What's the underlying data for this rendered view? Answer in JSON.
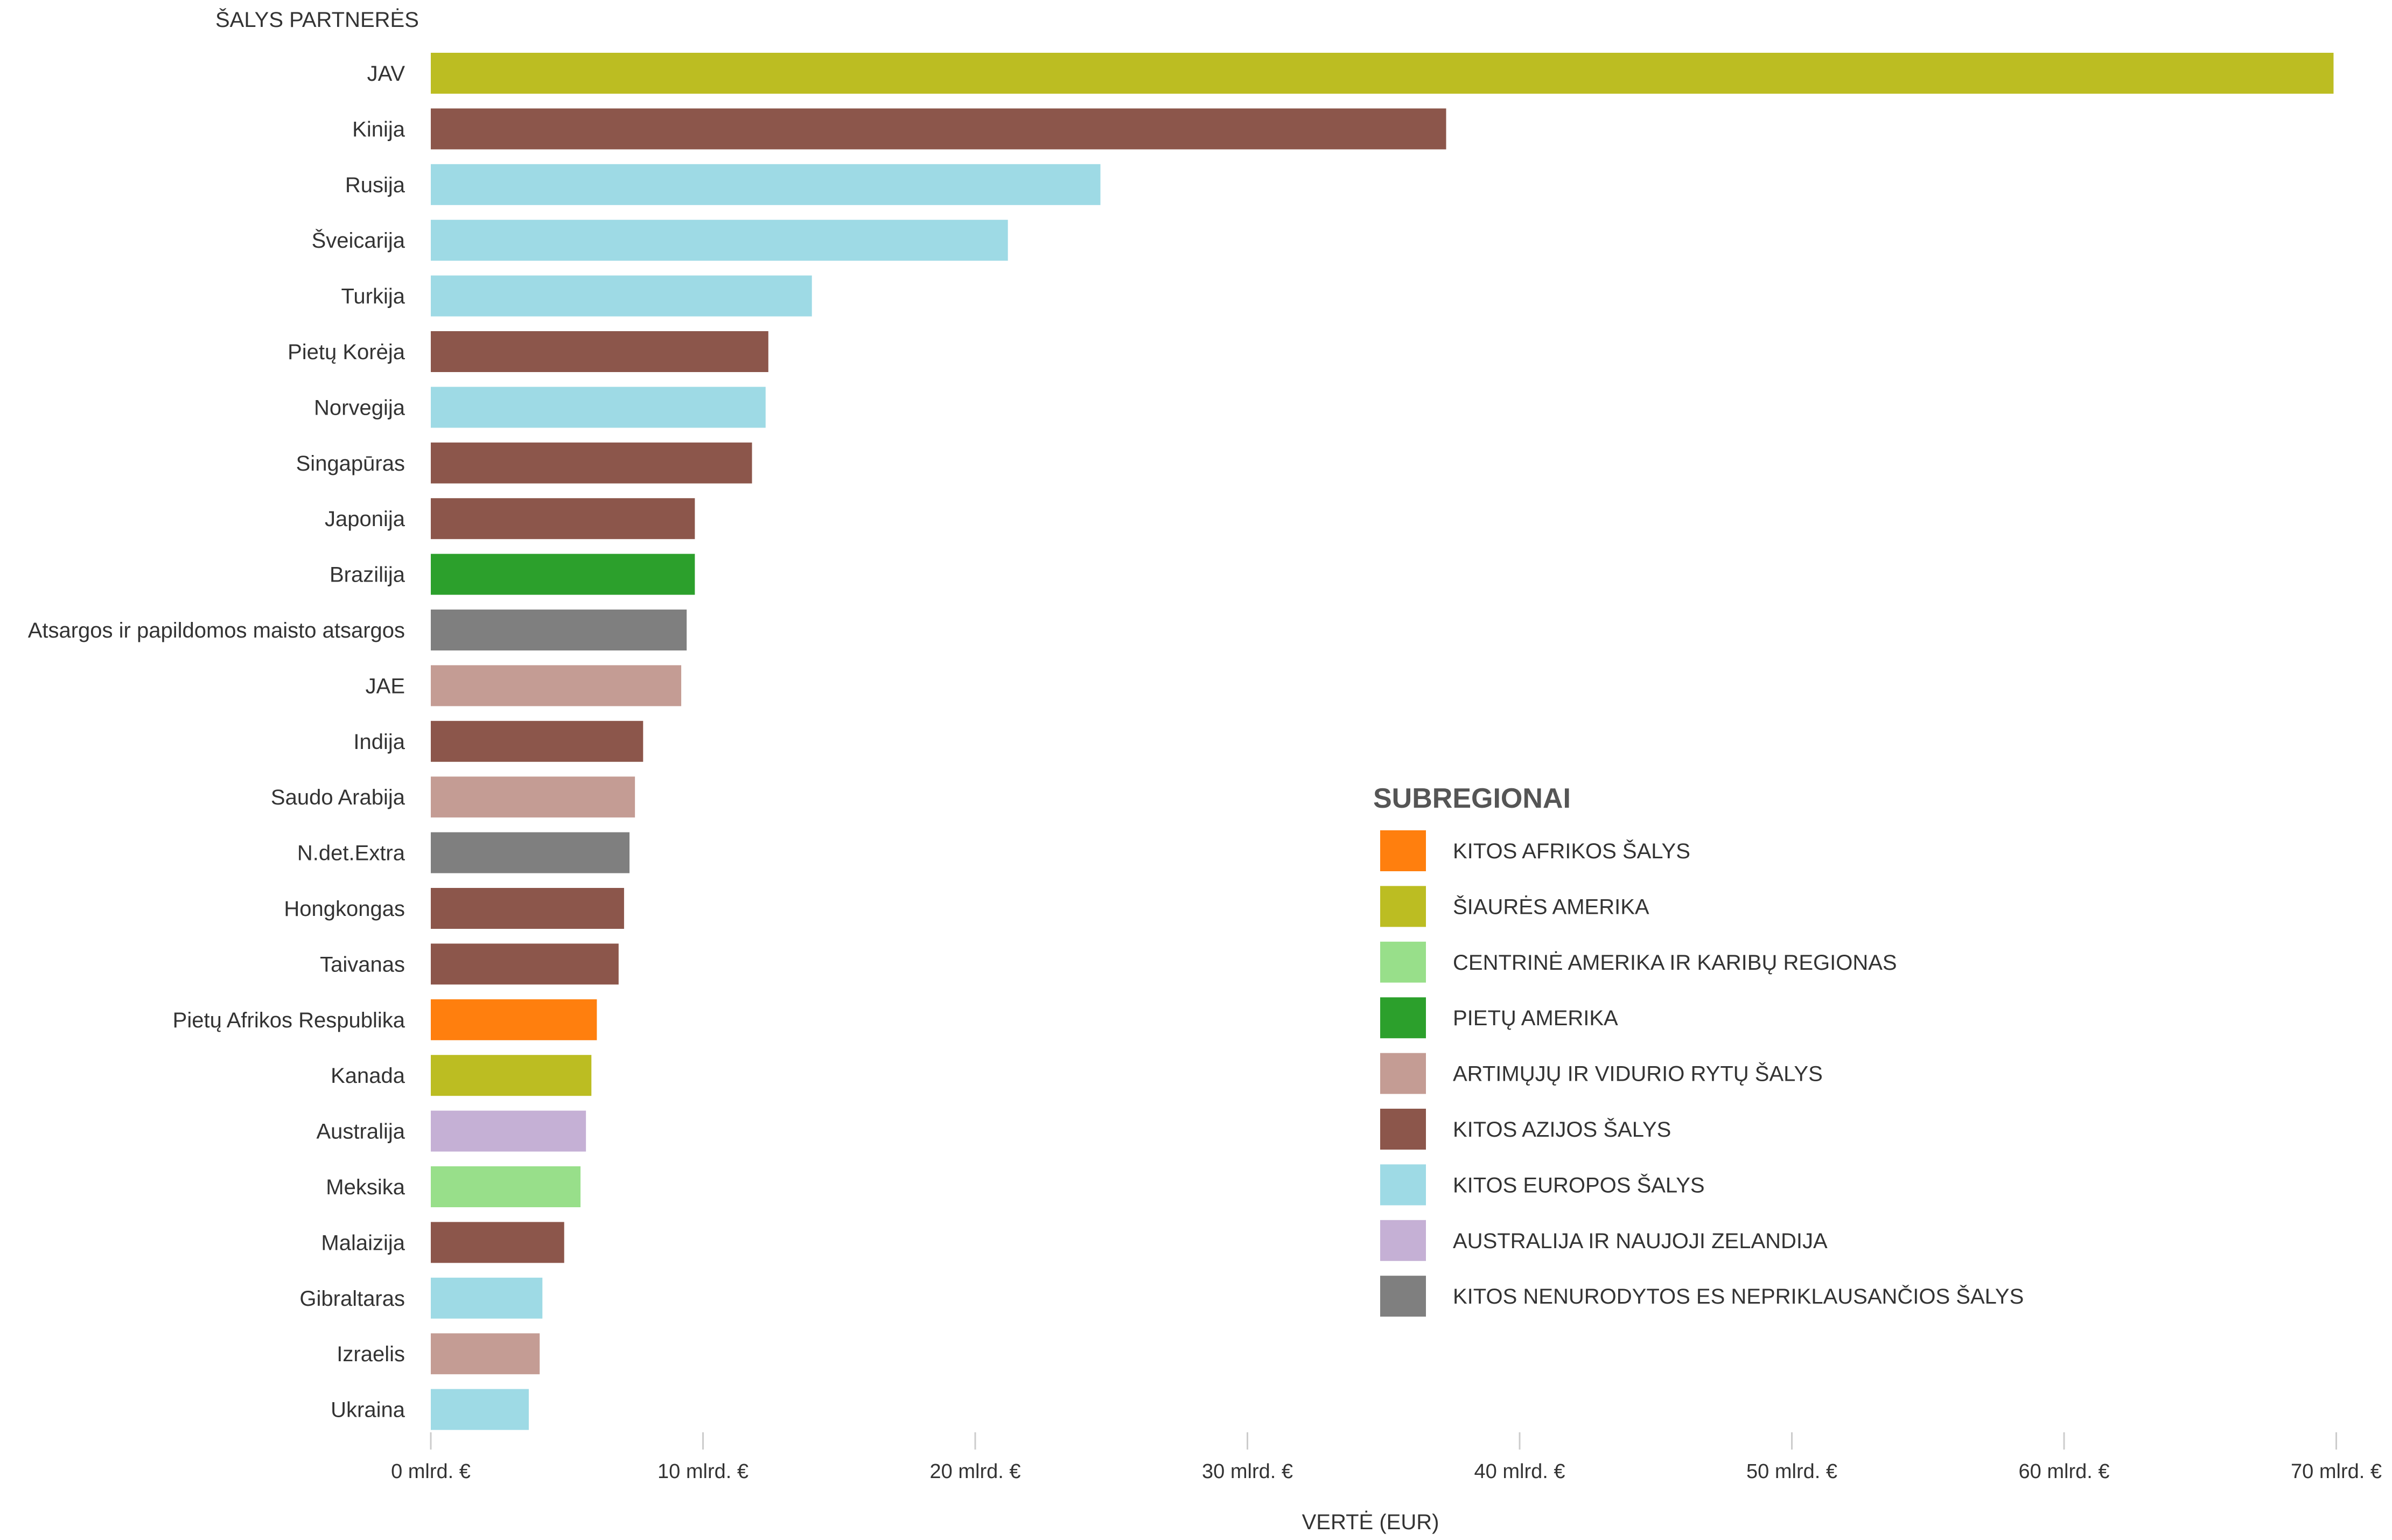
{
  "chart_data": {
    "type": "bar",
    "orientation": "horizontal",
    "y_axis_title": "ŠALYS PARTNERĖS",
    "xlabel": "VERTĖ (EUR)",
    "xlim": [
      0,
      70
    ],
    "x_ticks": [
      {
        "value": 0,
        "label": "0 mlrd. €"
      },
      {
        "value": 10,
        "label": "10 mlrd. €"
      },
      {
        "value": 20,
        "label": "20 mlrd. €"
      },
      {
        "value": 30,
        "label": "30 mlrd. €"
      },
      {
        "value": 40,
        "label": "40 mlrd. €"
      },
      {
        "value": 50,
        "label": "50 mlrd. €"
      },
      {
        "value": 60,
        "label": "60 mlrd. €"
      },
      {
        "value": 70,
        "label": "70 mlrd. €"
      }
    ],
    "bars": [
      {
        "category": "JAV",
        "value": 69.9,
        "subregion": "north_america"
      },
      {
        "category": "Kinija",
        "value": 37.3,
        "subregion": "other_asia"
      },
      {
        "category": "Rusija",
        "value": 24.6,
        "subregion": "other_europe"
      },
      {
        "category": "Šveicarija",
        "value": 21.2,
        "subregion": "other_europe"
      },
      {
        "category": "Turkija",
        "value": 14.0,
        "subregion": "other_europe"
      },
      {
        "category": "Pietų Korėja",
        "value": 12.4,
        "subregion": "other_asia"
      },
      {
        "category": "Norvegija",
        "value": 12.3,
        "subregion": "other_europe"
      },
      {
        "category": "Singapūras",
        "value": 11.8,
        "subregion": "other_asia"
      },
      {
        "category": "Japonija",
        "value": 9.7,
        "subregion": "other_asia"
      },
      {
        "category": "Brazilija",
        "value": 9.7,
        "subregion": "south_america"
      },
      {
        "category": "Atsargos ir papildomos maisto atsargos",
        "value": 9.4,
        "subregion": "unspecified"
      },
      {
        "category": "JAE",
        "value": 9.2,
        "subregion": "near_middle_east"
      },
      {
        "category": "Indija",
        "value": 7.8,
        "subregion": "other_asia"
      },
      {
        "category": "Saudo Arabija",
        "value": 7.5,
        "subregion": "near_middle_east"
      },
      {
        "category": "N.det.Extra",
        "value": 7.3,
        "subregion": "unspecified"
      },
      {
        "category": "Hongkongas",
        "value": 7.1,
        "subregion": "other_asia"
      },
      {
        "category": "Taivanas",
        "value": 6.9,
        "subregion": "other_asia"
      },
      {
        "category": "Pietų Afrikos Respublika",
        "value": 6.1,
        "subregion": "other_africa"
      },
      {
        "category": "Kanada",
        "value": 5.9,
        "subregion": "north_america"
      },
      {
        "category": "Australija",
        "value": 5.7,
        "subregion": "australia_nz"
      },
      {
        "category": "Meksika",
        "value": 5.5,
        "subregion": "central_america"
      },
      {
        "category": "Malaizija",
        "value": 4.9,
        "subregion": "other_asia"
      },
      {
        "category": "Gibraltaras",
        "value": 4.1,
        "subregion": "other_europe"
      },
      {
        "category": "Izraelis",
        "value": 4.0,
        "subregion": "near_middle_east"
      },
      {
        "category": "Ukraina",
        "value": 3.6,
        "subregion": "other_europe"
      }
    ],
    "legend": {
      "title": "SUBREGIONAI",
      "placement": "right-middle",
      "items": [
        {
          "key": "other_africa",
          "label": "KITOS AFRIKOS ŠALYS",
          "color": "#ff7f0e"
        },
        {
          "key": "north_america",
          "label": "ŠIAURĖS AMERIKA",
          "color": "#bcbd22"
        },
        {
          "key": "central_america",
          "label": "CENTRINĖ AMERIKA IR KARIBŲ REGIONAS",
          "color": "#98df8a"
        },
        {
          "key": "south_america",
          "label": "PIETŲ AMERIKA",
          "color": "#2ca02c"
        },
        {
          "key": "near_middle_east",
          "label": "ARTIMŲJŲ IR VIDURIO RYTŲ ŠALYS",
          "color": "#c49c94"
        },
        {
          "key": "other_asia",
          "label": "KITOS AZIJOS ŠALYS",
          "color": "#8c564b"
        },
        {
          "key": "other_europe",
          "label": "KITOS EUROPOS ŠALYS",
          "color": "#9edae5"
        },
        {
          "key": "australia_nz",
          "label": "AUSTRALIJA IR NAUJOJI ZELANDIJA",
          "color": "#c5b0d5"
        },
        {
          "key": "unspecified",
          "label": "KITOS NENURODYTOS ES NEPRIKLAUSANČIOS ŠALYS",
          "color": "#7f7f7f"
        }
      ]
    }
  }
}
